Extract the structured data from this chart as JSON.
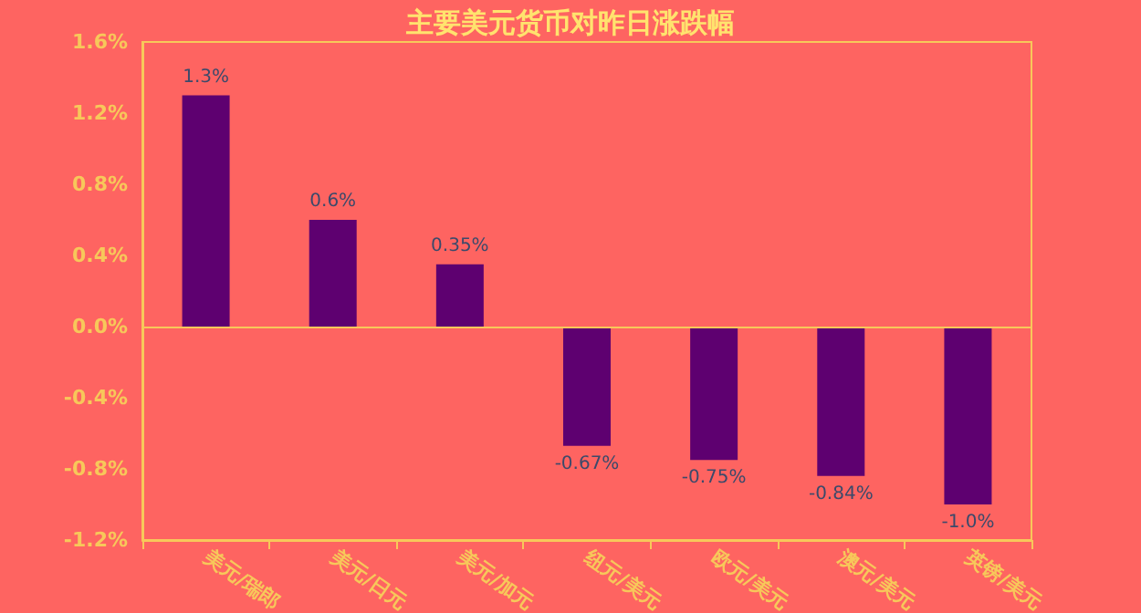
{
  "chart_data": {
    "type": "bar",
    "title": "主要美元货币对昨日涨跌幅",
    "categories": [
      "美元/瑞郎",
      "美元/日元",
      "美元/加元",
      "纽元/美元",
      "欧元/美元",
      "澳元/美元",
      "英镑/美元"
    ],
    "values": [
      1.3,
      0.6,
      0.35,
      -0.67,
      -0.75,
      -0.84,
      -1.0
    ],
    "value_labels": [
      "1.3%",
      "0.6%",
      "0.35%",
      "-0.67%",
      "-0.75%",
      "-0.84%",
      "-1.0%"
    ],
    "color": "#5e0070",
    "ylim": [
      -1.2,
      1.6
    ],
    "yticks": [
      {
        "value": -1.2,
        "label": "-1.2%"
      },
      {
        "value": -0.8,
        "label": "-0.8%"
      },
      {
        "value": -0.4,
        "label": "-0.4%"
      },
      {
        "value": 0,
        "label": "0.0%"
      },
      {
        "value": 0.4,
        "label": "0.4%"
      },
      {
        "value": 0.8,
        "label": "0.8%"
      },
      {
        "value": 1.2,
        "label": "1.2%"
      },
      {
        "value": 1.6,
        "label": "1.6%"
      }
    ],
    "ref_lines": [
      {
        "axis": "y",
        "value": 0,
        "color": "#f7c85a"
      }
    ],
    "grid": false
  }
}
